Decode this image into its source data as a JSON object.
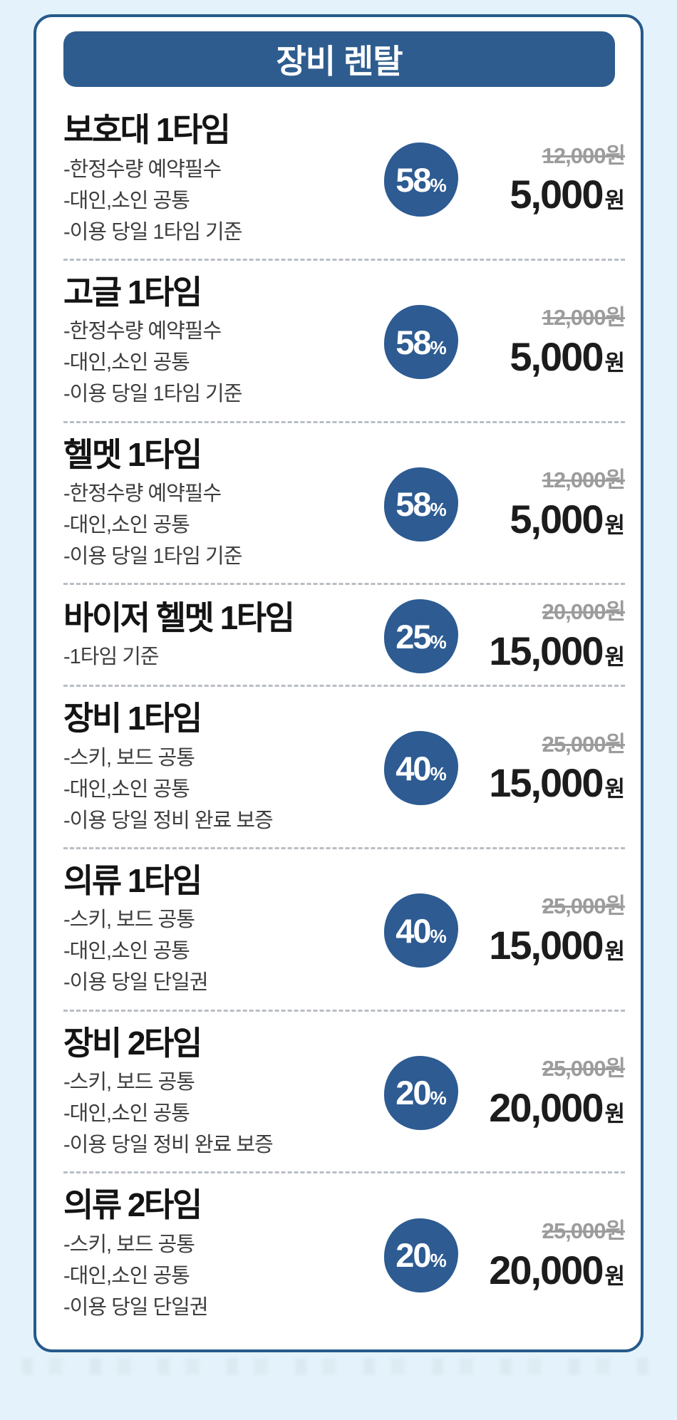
{
  "colors": {
    "background": "#e4f3fb",
    "card_border": "#275a8c",
    "header_bg": "#2e5c8e",
    "badge_bg": "#2d5b92",
    "old_price": "#9c9c9c",
    "price_text": "#1c1c1c",
    "note_text": "#3e3e3e",
    "divider": "#b9bec4"
  },
  "labels": {
    "percent_sign": "%"
  },
  "header": {
    "title": "장비 렌탈"
  },
  "items": [
    {
      "title": "보호대 1타임",
      "notes": [
        "-한정수량 예약필수",
        "-대인,소인 공통",
        "-이용 당일 1타임 기준"
      ],
      "discount_percent": "58",
      "original_price": "12,000원",
      "sale_price": "5,000",
      "currency_suffix": "원"
    },
    {
      "title": "고글 1타임",
      "notes": [
        "-한정수량 예약필수",
        "-대인,소인 공통",
        "-이용 당일 1타임 기준"
      ],
      "discount_percent": "58",
      "original_price": "12,000원",
      "sale_price": "5,000",
      "currency_suffix": "원"
    },
    {
      "title": "헬멧 1타임",
      "notes": [
        "-한정수량 예약필수",
        "-대인,소인 공통",
        "-이용 당일 1타임 기준"
      ],
      "discount_percent": "58",
      "original_price": "12,000원",
      "sale_price": "5,000",
      "currency_suffix": "원"
    },
    {
      "title": "바이저 헬멧 1타임",
      "notes": [
        "-1타임 기준"
      ],
      "discount_percent": "25",
      "original_price": "20,000원",
      "sale_price": "15,000",
      "currency_suffix": "원"
    },
    {
      "title": "장비 1타임",
      "notes": [
        "-스키, 보드 공통",
        "-대인,소인 공통",
        "-이용 당일 정비 완료 보증"
      ],
      "discount_percent": "40",
      "original_price": "25,000원",
      "sale_price": "15,000",
      "currency_suffix": "원"
    },
    {
      "title": "의류 1타임",
      "notes": [
        "-스키, 보드 공통",
        "-대인,소인 공통",
        "-이용 당일 단일권"
      ],
      "discount_percent": "40",
      "original_price": "25,000원",
      "sale_price": "15,000",
      "currency_suffix": "원"
    },
    {
      "title": "장비 2타임",
      "notes": [
        "-스키, 보드 공통",
        "-대인,소인 공통",
        "-이용 당일 정비 완료 보증"
      ],
      "discount_percent": "20",
      "original_price": "25,000원",
      "sale_price": "20,000",
      "currency_suffix": "원"
    },
    {
      "title": "의류 2타임",
      "notes": [
        "-스키, 보드 공통",
        "-대인,소인 공통",
        "-이용 당일 단일권"
      ],
      "discount_percent": "20",
      "original_price": "25,000원",
      "sale_price": "20,000",
      "currency_suffix": "원"
    }
  ]
}
